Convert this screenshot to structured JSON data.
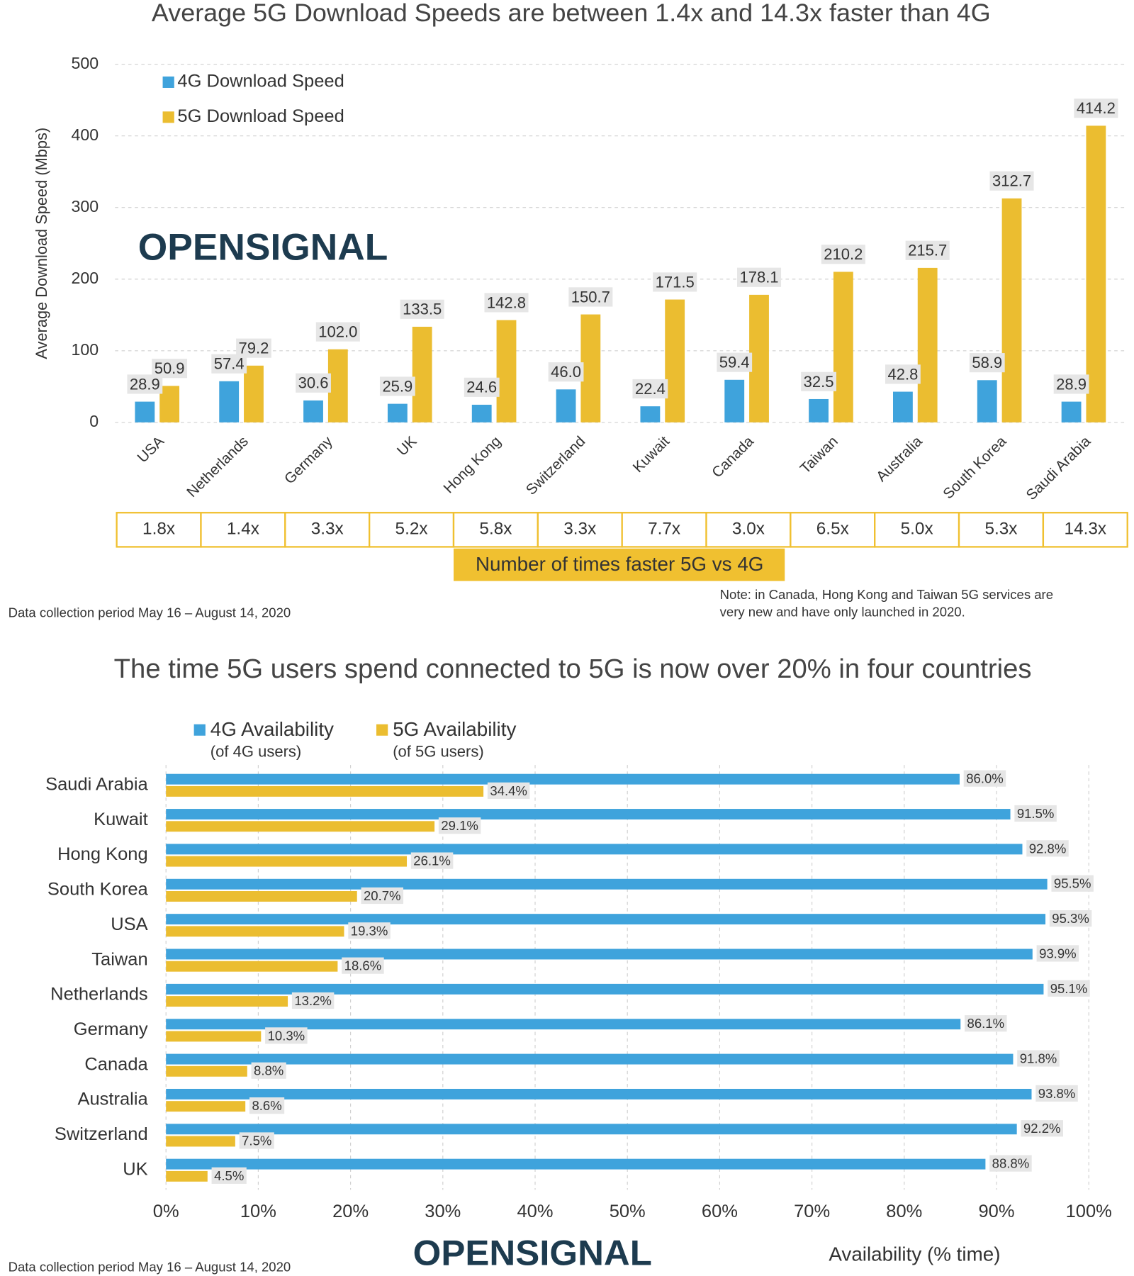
{
  "chart_data": [
    {
      "type": "bar",
      "title": "Average 5G Download Speeds are between 1.4x and 14.3x faster than 4G",
      "y_label": "Average Download Speed (Mbps)",
      "categories": [
        "USA",
        "Netherlands",
        "Germany",
        "UK",
        "Hong Kong",
        "Switzerland",
        "Kuwait",
        "Canada",
        "Taiwan",
        "Australia",
        "South Korea",
        "Saudi Arabia"
      ],
      "series": [
        {
          "name": "4G Download Speed",
          "color": "#3fa3dc",
          "values": [
            28.9,
            57.4,
            30.6,
            25.9,
            24.6,
            46.0,
            22.4,
            59.4,
            32.5,
            42.8,
            58.9,
            28.9
          ],
          "value_labels": [
            "28.9",
            "57.4",
            "30.6",
            "25.9",
            "24.6",
            "46.0",
            "22.4",
            "59.4",
            "32.5",
            "42.8",
            "58.9",
            "28.9"
          ]
        },
        {
          "name": "5G Download Speed",
          "color": "#ebbd30",
          "values": [
            50.9,
            79.2,
            102.0,
            133.5,
            142.8,
            150.7,
            171.5,
            178.1,
            210.2,
            215.7,
            312.7,
            414.2
          ],
          "value_labels": [
            "50.9",
            "79.2",
            "102.0",
            "133.5",
            "142.8",
            "150.7",
            "171.5",
            "178.1",
            "210.2",
            "215.7",
            "312.7",
            "414.2"
          ]
        }
      ],
      "ylim": [
        0,
        500
      ],
      "yticks": [
        0,
        100,
        200,
        300,
        400,
        500
      ],
      "grid": true,
      "ratio_labels": [
        "1.8x",
        "1.4x",
        "3.3x",
        "5.2x",
        "5.8x",
        "3.3x",
        "7.7x",
        "3.0x",
        "6.5x",
        "5.0x",
        "5.3x",
        "14.3x"
      ],
      "ratio_title": "Number of times faster 5G vs 4G",
      "logo": "OPENSIGNAL",
      "source": "Data collection period May 16 – August 14, 2020",
      "note": [
        "Note: in Canada, Hong Kong and Taiwan 5G services are",
        "very new and have only launched in 2020."
      ]
    },
    {
      "type": "hbar",
      "title": "The time 5G users spend connected to 5G is now over 20% in four countries",
      "x_label": "Availability (% time)",
      "categories": [
        "Saudi Arabia",
        "Kuwait",
        "Hong Kong",
        "South Korea",
        "USA",
        "Taiwan",
        "Netherlands",
        "Germany",
        "Canada",
        "Australia",
        "Switzerland",
        "UK"
      ],
      "series": [
        {
          "name": "4G Availability",
          "subtitle": "(of 4G users)",
          "color": "#3fa3dc",
          "values": [
            86.0,
            91.5,
            92.8,
            95.5,
            95.3,
            93.9,
            95.1,
            86.1,
            91.8,
            93.8,
            92.2,
            88.8
          ],
          "value_labels": [
            "86.0%",
            "91.5%",
            "92.8%",
            "95.5%",
            "95.3%",
            "93.9%",
            "95.1%",
            "86.1%",
            "91.8%",
            "93.8%",
            "92.2%",
            "88.8%"
          ]
        },
        {
          "name": "5G Availability",
          "subtitle": "(of 5G users)",
          "color": "#ebbd30",
          "values": [
            34.4,
            29.1,
            26.1,
            20.7,
            19.3,
            18.6,
            13.2,
            10.3,
            8.8,
            8.6,
            7.5,
            4.5
          ],
          "value_labels": [
            "34.4%",
            "29.1%",
            "26.1%",
            "20.7%",
            "19.3%",
            "18.6%",
            "13.2%",
            "10.3%",
            "8.8%",
            "8.6%",
            "7.5%",
            "4.5%"
          ]
        }
      ],
      "xlim": [
        0,
        100
      ],
      "xticks": [
        {
          "value": 0,
          "label": "0%"
        },
        {
          "value": 10,
          "label": "10%"
        },
        {
          "value": 20,
          "label": "20%"
        },
        {
          "value": 30,
          "label": "30%"
        },
        {
          "value": 40,
          "label": "40%"
        },
        {
          "value": 50,
          "label": "50%"
        },
        {
          "value": 60,
          "label": "60%"
        },
        {
          "value": 70,
          "label": "70%"
        },
        {
          "value": 80,
          "label": "80%"
        },
        {
          "value": 90,
          "label": "90%"
        },
        {
          "value": 100,
          "label": "100%"
        }
      ],
      "grid": true,
      "logo": "OPENSIGNAL",
      "source": "Data collection period May 16 – August 14, 2020"
    }
  ]
}
